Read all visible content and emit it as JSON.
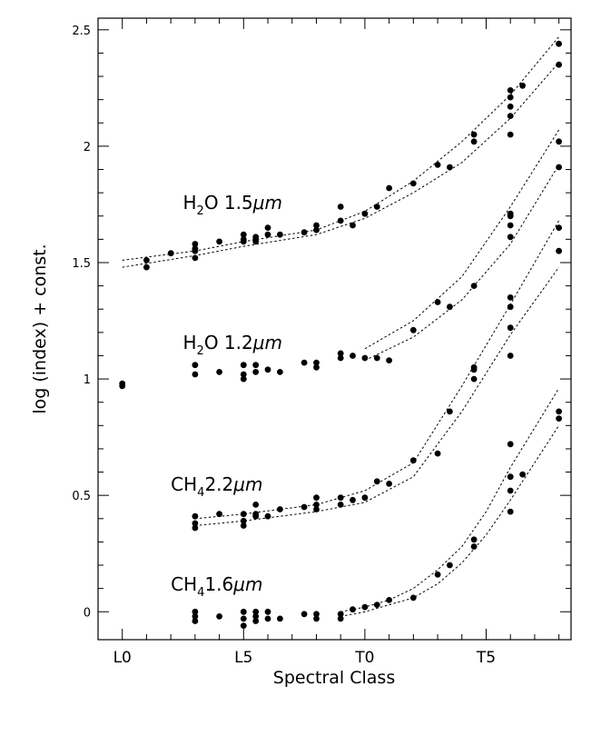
{
  "chart_data": {
    "type": "scatter",
    "xlabel": "Spectral Class",
    "ylabel": "log (index) + const.",
    "xlim": [
      -1,
      18.5
    ],
    "ylim": [
      -0.12,
      2.55
    ],
    "x_ticks": [
      {
        "value": 0,
        "label": "L0"
      },
      {
        "value": 5,
        "label": "L5"
      },
      {
        "value": 10,
        "label": "T0"
      },
      {
        "value": 15,
        "label": "T5"
      }
    ],
    "x_minor_ticks": [
      1,
      2,
      3,
      4,
      6,
      7,
      8,
      9,
      11,
      12,
      13,
      14,
      16,
      17,
      18
    ],
    "y_ticks": [
      {
        "value": 0,
        "label": "0"
      },
      {
        "value": 0.5,
        "label": "0.5"
      },
      {
        "value": 1,
        "label": "1"
      },
      {
        "value": 1.5,
        "label": "1.5"
      },
      {
        "value": 2,
        "label": "2"
      },
      {
        "value": 2.5,
        "label": "2.5"
      }
    ],
    "grid": false,
    "series": [
      {
        "name": "H₂O 1.5μm",
        "label_main": "H",
        "label_sub": "2",
        "label_rest": "O  1.5",
        "label_unit": "μm",
        "label_at": [
          2.5,
          1.73
        ],
        "points": [
          [
            1,
            1.51
          ],
          [
            1,
            1.48
          ],
          [
            2,
            1.54
          ],
          [
            3,
            1.58
          ],
          [
            3,
            1.56
          ],
          [
            3,
            1.55
          ],
          [
            3,
            1.52
          ],
          [
            4,
            1.59
          ],
          [
            5,
            1.62
          ],
          [
            5,
            1.6
          ],
          [
            5,
            1.59
          ],
          [
            5.5,
            1.61
          ],
          [
            5.5,
            1.6
          ],
          [
            5.5,
            1.59
          ],
          [
            6,
            1.65
          ],
          [
            6,
            1.62
          ],
          [
            6.5,
            1.62
          ],
          [
            7.5,
            1.63
          ],
          [
            8,
            1.66
          ],
          [
            8,
            1.64
          ],
          [
            9,
            1.74
          ],
          [
            9,
            1.68
          ],
          [
            9.5,
            1.66
          ],
          [
            10,
            1.71
          ],
          [
            10.5,
            1.74
          ],
          [
            11,
            1.82
          ],
          [
            12,
            1.84
          ],
          [
            13,
            1.92
          ],
          [
            13.5,
            1.91
          ],
          [
            14.5,
            2.05
          ],
          [
            14.5,
            2.02
          ],
          [
            16,
            2.24
          ],
          [
            16,
            2.21
          ],
          [
            16,
            2.17
          ],
          [
            16,
            2.13
          ],
          [
            16,
            2.05
          ],
          [
            16.5,
            2.26
          ],
          [
            18,
            2.44
          ],
          [
            18,
            2.35
          ]
        ],
        "band_upper": [
          [
            0,
            1.51
          ],
          [
            3,
            1.55
          ],
          [
            5,
            1.59
          ],
          [
            8,
            1.64
          ],
          [
            10,
            1.72
          ],
          [
            12,
            1.85
          ],
          [
            14,
            2.02
          ],
          [
            16,
            2.22
          ],
          [
            18,
            2.47
          ]
        ],
        "band_lower": [
          [
            0,
            1.48
          ],
          [
            3,
            1.53
          ],
          [
            5,
            1.57
          ],
          [
            8,
            1.62
          ],
          [
            10,
            1.69
          ],
          [
            12,
            1.8
          ],
          [
            14,
            1.93
          ],
          [
            16,
            2.12
          ],
          [
            18,
            2.36
          ]
        ]
      },
      {
        "name": "H₂O 1.2μm",
        "label_main": "H",
        "label_sub": "2",
        "label_rest": "O  1.2",
        "label_unit": "μm",
        "label_at": [
          2.5,
          1.13
        ],
        "points": [
          [
            0,
            0.98
          ],
          [
            0,
            0.97
          ],
          [
            3,
            1.06
          ],
          [
            3,
            1.02
          ],
          [
            4,
            1.03
          ],
          [
            5,
            1.06
          ],
          [
            5,
            1.02
          ],
          [
            5,
            1.0
          ],
          [
            5.5,
            1.06
          ],
          [
            5.5,
            1.03
          ],
          [
            6,
            1.04
          ],
          [
            6.5,
            1.03
          ],
          [
            7.5,
            1.07
          ],
          [
            8,
            1.07
          ],
          [
            8,
            1.05
          ],
          [
            9,
            1.11
          ],
          [
            9,
            1.09
          ],
          [
            9.5,
            1.1
          ],
          [
            10,
            1.09
          ],
          [
            10.5,
            1.09
          ],
          [
            11,
            1.08
          ],
          [
            12,
            1.21
          ],
          [
            13,
            1.33
          ],
          [
            13.5,
            1.31
          ],
          [
            14.5,
            1.4
          ],
          [
            16,
            1.71
          ],
          [
            16,
            1.7
          ],
          [
            16,
            1.66
          ],
          [
            16,
            1.61
          ],
          [
            18,
            2.02
          ],
          [
            18,
            1.91
          ]
        ],
        "band_upper": [
          [
            10,
            1.13
          ],
          [
            12,
            1.25
          ],
          [
            14,
            1.44
          ],
          [
            16,
            1.74
          ],
          [
            18,
            2.07
          ]
        ],
        "band_lower": [
          [
            10,
            1.08
          ],
          [
            12,
            1.18
          ],
          [
            14,
            1.34
          ],
          [
            16,
            1.58
          ],
          [
            18,
            1.92
          ]
        ]
      },
      {
        "name": "CH₄ 2.2μm",
        "label_main": "CH",
        "label_sub": "4",
        "label_rest": "2.2",
        "label_unit": "μm",
        "label_at": [
          2,
          0.52
        ],
        "points": [
          [
            3,
            0.41
          ],
          [
            3,
            0.38
          ],
          [
            3,
            0.36
          ],
          [
            4,
            0.42
          ],
          [
            5,
            0.42
          ],
          [
            5,
            0.39
          ],
          [
            5,
            0.37
          ],
          [
            5.5,
            0.46
          ],
          [
            5.5,
            0.42
          ],
          [
            5.5,
            0.41
          ],
          [
            6,
            0.41
          ],
          [
            6.5,
            0.44
          ],
          [
            7.5,
            0.45
          ],
          [
            8,
            0.49
          ],
          [
            8,
            0.46
          ],
          [
            8,
            0.44
          ],
          [
            9,
            0.49
          ],
          [
            9,
            0.46
          ],
          [
            9.5,
            0.48
          ],
          [
            10,
            0.49
          ],
          [
            10.5,
            0.56
          ],
          [
            11,
            0.55
          ],
          [
            12,
            0.65
          ],
          [
            13,
            0.68
          ],
          [
            13.5,
            0.86
          ],
          [
            14.5,
            1.05
          ],
          [
            14.5,
            1.04
          ],
          [
            14.5,
            1.0
          ],
          [
            16,
            1.35
          ],
          [
            16,
            1.31
          ],
          [
            16,
            1.22
          ],
          [
            16,
            1.1
          ],
          [
            18,
            1.65
          ],
          [
            18,
            1.55
          ]
        ],
        "band_upper": [
          [
            3,
            0.4
          ],
          [
            5,
            0.42
          ],
          [
            8,
            0.46
          ],
          [
            10,
            0.52
          ],
          [
            12,
            0.64
          ],
          [
            14,
            0.97
          ],
          [
            16,
            1.32
          ],
          [
            18,
            1.68
          ]
        ],
        "band_lower": [
          [
            3,
            0.37
          ],
          [
            5,
            0.39
          ],
          [
            8,
            0.43
          ],
          [
            10,
            0.47
          ],
          [
            12,
            0.58
          ],
          [
            14,
            0.86
          ],
          [
            16,
            1.19
          ],
          [
            18,
            1.48
          ]
        ]
      },
      {
        "name": "CH₄ 1.6μm",
        "label_main": "CH",
        "label_sub": "4",
        "label_rest": "1.6",
        "label_unit": "μm",
        "label_at": [
          2,
          0.09
        ],
        "points": [
          [
            3,
            0.0
          ],
          [
            3,
            -0.02
          ],
          [
            3,
            -0.04
          ],
          [
            4,
            -0.02
          ],
          [
            5,
            0.0
          ],
          [
            5,
            -0.03
          ],
          [
            5,
            -0.06
          ],
          [
            5.5,
            0.0
          ],
          [
            5.5,
            -0.02
          ],
          [
            5.5,
            -0.04
          ],
          [
            6,
            0.0
          ],
          [
            6,
            -0.03
          ],
          [
            6.5,
            -0.03
          ],
          [
            7.5,
            -0.01
          ],
          [
            8,
            -0.01
          ],
          [
            8,
            -0.03
          ],
          [
            9,
            -0.01
          ],
          [
            9,
            -0.03
          ],
          [
            9.5,
            0.01
          ],
          [
            10,
            0.02
          ],
          [
            10.5,
            0.03
          ],
          [
            11,
            0.05
          ],
          [
            12,
            0.06
          ],
          [
            13,
            0.16
          ],
          [
            13.5,
            0.2
          ],
          [
            14.5,
            0.31
          ],
          [
            14.5,
            0.28
          ],
          [
            16,
            0.72
          ],
          [
            16,
            0.58
          ],
          [
            16,
            0.52
          ],
          [
            16,
            0.43
          ],
          [
            16.5,
            0.59
          ],
          [
            18,
            0.86
          ],
          [
            18,
            0.83
          ]
        ],
        "band_upper": [
          [
            9,
            0.0
          ],
          [
            10,
            0.02
          ],
          [
            11,
            0.05
          ],
          [
            12,
            0.1
          ],
          [
            13,
            0.18
          ],
          [
            14,
            0.28
          ],
          [
            15,
            0.43
          ],
          [
            16,
            0.62
          ],
          [
            18,
            0.96
          ]
        ],
        "band_lower": [
          [
            9,
            -0.02
          ],
          [
            10,
            0.0
          ],
          [
            11,
            0.03
          ],
          [
            12,
            0.06
          ],
          [
            13,
            0.12
          ],
          [
            14,
            0.21
          ],
          [
            15,
            0.33
          ],
          [
            16,
            0.48
          ],
          [
            18,
            0.8
          ]
        ]
      }
    ]
  }
}
